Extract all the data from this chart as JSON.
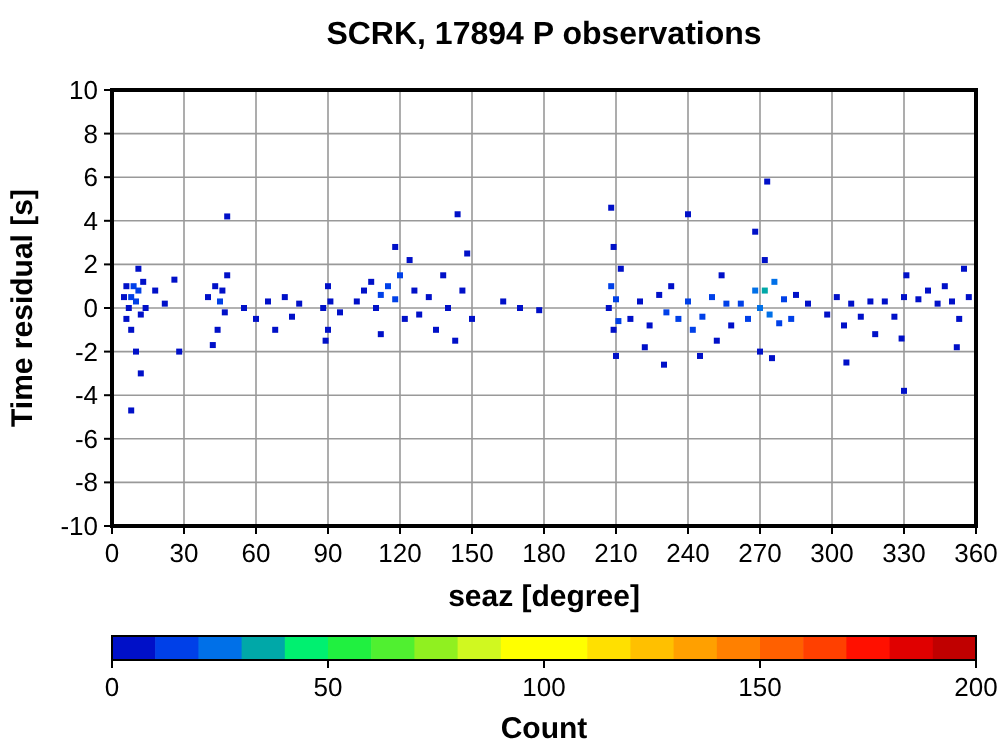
{
  "chart_data": {
    "type": "scatter",
    "title": "SCRK, 17894 P observations",
    "xlabel": "seaz [degree]",
    "ylabel": "Time residual [s]",
    "clabel": "Count",
    "xlim": [
      0,
      360
    ],
    "xticks": [
      0,
      30,
      60,
      90,
      120,
      150,
      180,
      210,
      240,
      270,
      300,
      330,
      360
    ],
    "ylim": [
      -10,
      10
    ],
    "yticks": [
      -10,
      -8,
      -6,
      -4,
      -2,
      0,
      2,
      4,
      6,
      8,
      10
    ],
    "clim": [
      0,
      200
    ],
    "cticks": [
      0,
      50,
      100,
      150,
      200
    ],
    "grid": true,
    "marker": "square",
    "x": [
      5,
      6,
      7,
      8,
      9,
      10,
      11,
      12,
      13,
      14,
      8,
      10,
      12,
      8,
      11,
      6,
      18,
      22,
      26,
      28,
      40,
      43,
      45,
      46,
      47,
      48,
      44,
      48,
      42,
      55,
      60,
      65,
      68,
      72,
      75,
      78,
      88,
      90,
      90,
      91,
      89,
      95,
      102,
      105,
      108,
      110,
      112,
      115,
      118,
      120,
      122,
      124,
      118,
      112,
      126,
      128,
      132,
      135,
      138,
      140,
      143,
      146,
      148,
      144,
      150,
      163,
      170,
      178,
      207,
      208,
      209,
      210,
      211,
      208,
      209,
      210,
      212,
      216,
      220,
      224,
      228,
      231,
      233,
      222,
      230,
      236,
      240,
      242,
      246,
      250,
      252,
      256,
      258,
      245,
      254,
      240,
      262,
      265,
      268,
      270,
      272,
      274,
      276,
      278,
      280,
      283,
      272,
      270,
      275,
      273,
      268,
      285,
      290,
      298,
      302,
      305,
      308,
      312,
      316,
      318,
      306,
      322,
      326,
      330,
      331,
      329,
      330,
      336,
      340,
      344,
      347,
      350,
      353,
      355,
      352,
      357
    ],
    "values": [
      0.5,
      1,
      0,
      0.5,
      1,
      0.3,
      0.8,
      -0.3,
      1.2,
      0,
      -1,
      -2,
      -3,
      -4.7,
      1.8,
      -0.5,
      0.8,
      0.2,
      1.3,
      -2,
      0.5,
      1,
      0.3,
      0.8,
      -0.2,
      1.5,
      -1,
      4.2,
      -1.7,
      0,
      -0.5,
      0.3,
      -1,
      0.5,
      -0.4,
      0.2,
      0,
      -1,
      1,
      0.3,
      -1.5,
      -0.2,
      0.3,
      0.8,
      1.2,
      0,
      0.6,
      1,
      0.4,
      1.5,
      -0.5,
      2.2,
      2.8,
      -1.2,
      0.8,
      -0.3,
      0.5,
      -1,
      1.5,
      0,
      -1.5,
      0.8,
      2.5,
      4.3,
      -0.5,
      0.3,
      0,
      -0.1,
      0,
      1,
      -1,
      0.4,
      -0.6,
      4.6,
      2.8,
      -2.2,
      1.8,
      -0.5,
      0.3,
      -0.8,
      0.6,
      -0.2,
      1,
      -1.8,
      -2.6,
      -0.5,
      0.3,
      -1,
      -0.4,
      0.5,
      -1.5,
      0.2,
      -0.8,
      -2.2,
      1.5,
      4.3,
      0.2,
      -0.5,
      0.8,
      0,
      0.8,
      -0.3,
      1.2,
      -0.7,
      0.4,
      -0.5,
      2.2,
      -2,
      -2.3,
      5.8,
      3.5,
      0.6,
      0.2,
      -0.3,
      0.5,
      -0.8,
      0.2,
      -0.4,
      0.3,
      -1.2,
      -2.5,
      0.3,
      -0.4,
      0.5,
      1.5,
      -1.4,
      -3.8,
      0.4,
      0.8,
      0.2,
      1,
      0.3,
      -0.5,
      1.8,
      -1.8,
      0.5
    ],
    "cvalues": [
      3,
      5,
      8,
      12,
      15,
      12,
      10,
      6,
      4,
      3,
      3,
      2,
      1,
      1,
      2,
      4,
      2,
      2,
      1,
      1,
      3,
      6,
      10,
      8,
      5,
      2,
      2,
      1,
      1,
      2,
      2,
      1,
      1,
      2,
      1,
      1,
      4,
      5,
      3,
      6,
      2,
      2,
      3,
      5,
      6,
      8,
      10,
      12,
      14,
      10,
      8,
      4,
      2,
      3,
      5,
      4,
      3,
      3,
      2,
      4,
      2,
      3,
      1,
      1,
      1,
      1,
      1,
      1,
      8,
      10,
      8,
      14,
      10,
      1,
      1,
      2,
      2,
      4,
      6,
      5,
      8,
      10,
      6,
      2,
      1,
      10,
      14,
      14,
      12,
      10,
      8,
      10,
      8,
      2,
      3,
      1,
      12,
      16,
      20,
      28,
      32,
      24,
      20,
      16,
      14,
      10,
      6,
      4,
      3,
      1,
      1,
      4,
      1,
      4,
      4,
      5,
      6,
      5,
      4,
      2,
      1,
      4,
      5,
      8,
      4,
      3,
      1,
      3,
      5,
      6,
      5,
      4,
      3,
      2,
      1,
      2
    ]
  }
}
